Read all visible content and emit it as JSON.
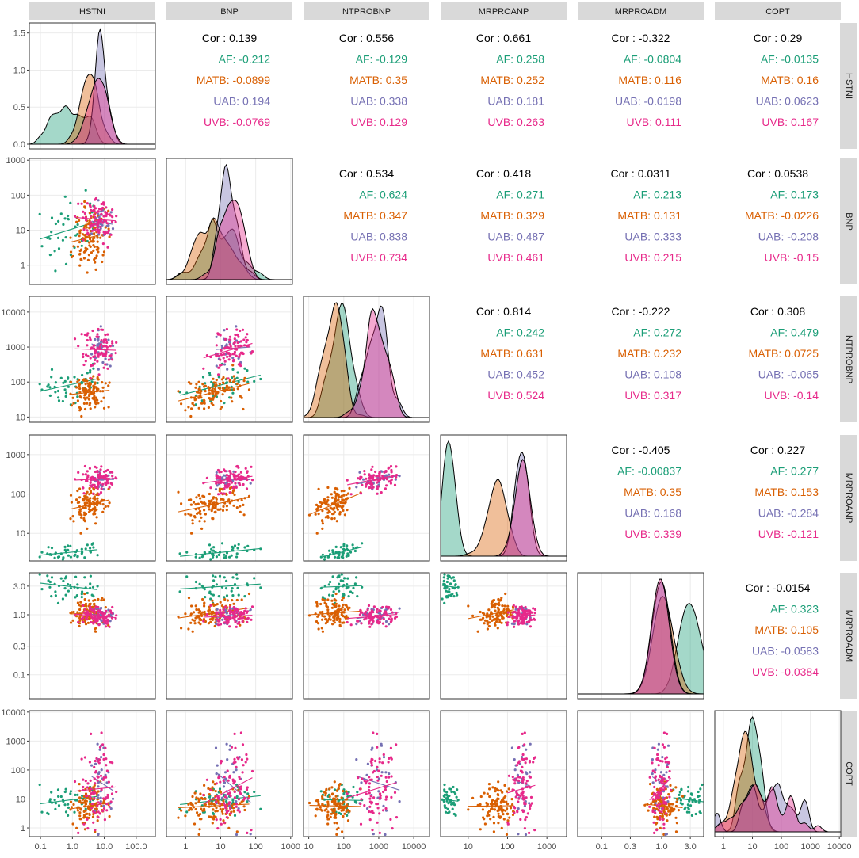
{
  "chart_data": {
    "type": "scatter-matrix",
    "variables": [
      "HSTNI",
      "BNP",
      "NTPROBNP",
      "MRPROANP",
      "MRPROADM",
      "COPT"
    ],
    "groups": [
      "AF",
      "MATB",
      "UAB",
      "UVB"
    ],
    "colors": {
      "AF": "#1b9e77",
      "MATB": "#d95f02",
      "UAB": "#7570b3",
      "UVB": "#e7298a",
      "overall": "#000000"
    },
    "axis_ticks": {
      "HSTNI": [
        "0.1",
        "1.0",
        "10.0",
        "100.0"
      ],
      "BNP": [
        "1",
        "10",
        "100",
        "1000"
      ],
      "NTPROBNP": [
        "10",
        "100",
        "1000",
        "10000"
      ],
      "MRPROANP": [
        "10",
        "100",
        "1000"
      ],
      "MRPROADM": [
        "0.1",
        "0.3",
        "1.0",
        "3.0"
      ],
      "COPT": [
        "1",
        "10",
        "100",
        "1000",
        "10000"
      ]
    },
    "density_y_ticks": [
      "0.0",
      "0.5",
      "1.0",
      "1.5"
    ],
    "correlations": [
      {
        "row": "HSTNI",
        "col": "BNP",
        "cor": "0.139",
        "AF": "-0.212",
        "MATB": "-0.0899",
        "UAB": "0.194",
        "UVB": "-0.0769"
      },
      {
        "row": "HSTNI",
        "col": "NTPROBNP",
        "cor": "0.556",
        "AF": "-0.129",
        "MATB": "0.35",
        "UAB": "0.338",
        "UVB": "0.129"
      },
      {
        "row": "HSTNI",
        "col": "MRPROANP",
        "cor": "0.661",
        "AF": "0.258",
        "MATB": "0.252",
        "UAB": "0.181",
        "UVB": "0.263"
      },
      {
        "row": "HSTNI",
        "col": "MRPROADM",
        "cor": "-0.322",
        "AF": "-0.0804",
        "MATB": "0.116",
        "UAB": "-0.0198",
        "UVB": "0.111"
      },
      {
        "row": "HSTNI",
        "col": "COPT",
        "cor": "0.29",
        "AF": "-0.0135",
        "MATB": "0.16",
        "UAB": "0.0623",
        "UVB": "0.167"
      },
      {
        "row": "BNP",
        "col": "NTPROBNP",
        "cor": "0.534",
        "AF": "0.624",
        "MATB": "0.347",
        "UAB": "0.838",
        "UVB": "0.734"
      },
      {
        "row": "BNP",
        "col": "MRPROANP",
        "cor": "0.418",
        "AF": "0.271",
        "MATB": "0.329",
        "UAB": "0.487",
        "UVB": "0.461"
      },
      {
        "row": "BNP",
        "col": "MRPROADM",
        "cor": "0.0311",
        "AF": "0.213",
        "MATB": "0.131",
        "UAB": "0.333",
        "UVB": "0.215"
      },
      {
        "row": "BNP",
        "col": "COPT",
        "cor": "0.0538",
        "AF": "0.173",
        "MATB": "-0.0226",
        "UAB": "-0.208",
        "UVB": "-0.15"
      },
      {
        "row": "NTPROBNP",
        "col": "MRPROANP",
        "cor": "0.814",
        "AF": "0.242",
        "MATB": "0.631",
        "UAB": "0.452",
        "UVB": "0.524"
      },
      {
        "row": "NTPROBNP",
        "col": "MRPROADM",
        "cor": "-0.222",
        "AF": "0.272",
        "MATB": "0.232",
        "UAB": "0.108",
        "UVB": "0.317"
      },
      {
        "row": "NTPROBNP",
        "col": "COPT",
        "cor": "0.308",
        "AF": "0.479",
        "MATB": "0.0725",
        "UAB": "-0.065",
        "UVB": "-0.14"
      },
      {
        "row": "MRPROANP",
        "col": "MRPROADM",
        "cor": "-0.405",
        "AF": "-0.00837",
        "MATB": "0.35",
        "UAB": "0.168",
        "UVB": "0.339"
      },
      {
        "row": "MRPROANP",
        "col": "COPT",
        "cor": "0.227",
        "AF": "0.277",
        "MATB": "0.153",
        "UAB": "-0.284",
        "UVB": "-0.121"
      },
      {
        "row": "MRPROADM",
        "col": "COPT",
        "cor": "-0.0154",
        "AF": "0.323",
        "MATB": "0.105",
        "UAB": "-0.0583",
        "UVB": "-0.0384"
      }
    ],
    "group_centers_log10": {
      "HSTNI": {
        "AF": -0.1,
        "MATB": 0.55,
        "UAB": 0.85,
        "UVB": 0.8
      },
      "BNP": {
        "AF": 0.95,
        "MATB": 0.8,
        "UAB": 1.2,
        "UVB": 1.35
      },
      "NTPROBNP": {
        "AF": 1.9,
        "MATB": 1.7,
        "UAB": 2.9,
        "UVB": 2.9
      },
      "MRPROANP": {
        "AF": 0.5,
        "MATB": 1.75,
        "UAB": 2.35,
        "UVB": 2.35
      },
      "MRPROADM": {
        "AF": 0.45,
        "MATB": 0.02,
        "UAB": -0.02,
        "UVB": -0.02
      },
      "COPT": {
        "AF": 1.05,
        "MATB": 0.75,
        "UAB": 1.5,
        "UVB": 1.4
      }
    }
  }
}
